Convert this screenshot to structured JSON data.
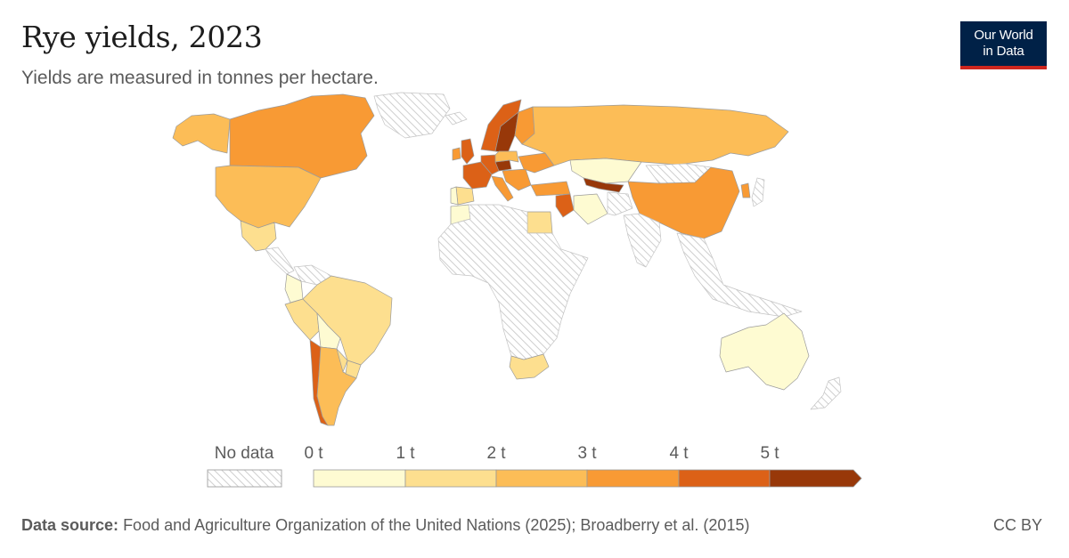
{
  "header": {
    "title": "Rye yields, 2023",
    "subtitle": "Yields are measured in tonnes per hectare."
  },
  "logo": {
    "line1": "Our World",
    "line2": "in Data"
  },
  "legend": {
    "no_data_label": "No data",
    "bins": [
      {
        "label": "0 t",
        "color": "#fefbd2"
      },
      {
        "label": "1 t",
        "color": "#fddf8f"
      },
      {
        "label": "2 t",
        "color": "#fcbd57"
      },
      {
        "label": "3 t",
        "color": "#f89a34"
      },
      {
        "label": "4 t",
        "color": "#dc6117"
      },
      {
        "label": "5 t",
        "color": "#983809"
      }
    ]
  },
  "colors": {
    "no_data": "#e8e8e8",
    "border": "#9b9b9b"
  },
  "footer": {
    "source_label": "Data source:",
    "source_text": "Food and Agriculture Organization of the United Nations (2025); Broadberry et al. (2015)",
    "license": "CC BY"
  },
  "map_regions": [
    {
      "name": "Canada",
      "bin": 3
    },
    {
      "name": "Alaska",
      "bin": 2
    },
    {
      "name": "Greenland",
      "bin": -1
    },
    {
      "name": "United States",
      "bin": 2
    },
    {
      "name": "Mexico",
      "bin": 1
    },
    {
      "name": "Central America",
      "bin": -1
    },
    {
      "name": "Colombia",
      "bin": 0
    },
    {
      "name": "Venezuela",
      "bin": -1
    },
    {
      "name": "Brazil",
      "bin": 1
    },
    {
      "name": "Peru",
      "bin": 1
    },
    {
      "name": "Bolivia",
      "bin": 0
    },
    {
      "name": "Paraguay",
      "bin": 1
    },
    {
      "name": "Argentina",
      "bin": 2
    },
    {
      "name": "Uruguay",
      "bin": 1
    },
    {
      "name": "Chile",
      "bin": 4
    },
    {
      "name": "Iceland",
      "bin": -1
    },
    {
      "name": "Norway",
      "bin": 4
    },
    {
      "name": "Sweden",
      "bin": 5
    },
    {
      "name": "Finland",
      "bin": 3
    },
    {
      "name": "United Kingdom",
      "bin": 4
    },
    {
      "name": "Ireland",
      "bin": 3
    },
    {
      "name": "France",
      "bin": 4
    },
    {
      "name": "Germany",
      "bin": 4
    },
    {
      "name": "Czechia",
      "bin": 5
    },
    {
      "name": "Poland",
      "bin": 2
    },
    {
      "name": "Spain",
      "bin": 1
    },
    {
      "name": "Portugal",
      "bin": 0
    },
    {
      "name": "Italy",
      "bin": 3
    },
    {
      "name": "Balkans",
      "bin": 3
    },
    {
      "name": "Ukraine",
      "bin": 3
    },
    {
      "name": "Turkey",
      "bin": 3
    },
    {
      "name": "Russia",
      "bin": 2
    },
    {
      "name": "Kazakhstan",
      "bin": 0
    },
    {
      "name": "Mongolia",
      "bin": -1
    },
    {
      "name": "China",
      "bin": 3
    },
    {
      "name": "Korea",
      "bin": 3
    },
    {
      "name": "Japan",
      "bin": -1
    },
    {
      "name": "Uzbekistan",
      "bin": 5
    },
    {
      "name": "Iraq",
      "bin": 4
    },
    {
      "name": "Iran",
      "bin": 0
    },
    {
      "name": "Afghanistan",
      "bin": -1
    },
    {
      "name": "India",
      "bin": -1
    },
    {
      "name": "Southeast Asia",
      "bin": -1
    },
    {
      "name": "Morocco",
      "bin": 0
    },
    {
      "name": "Egypt",
      "bin": 1
    },
    {
      "name": "Africa",
      "bin": -1
    },
    {
      "name": "South Africa",
      "bin": 1
    },
    {
      "name": "Australia",
      "bin": 0
    },
    {
      "name": "New Zealand",
      "bin": -1
    }
  ]
}
